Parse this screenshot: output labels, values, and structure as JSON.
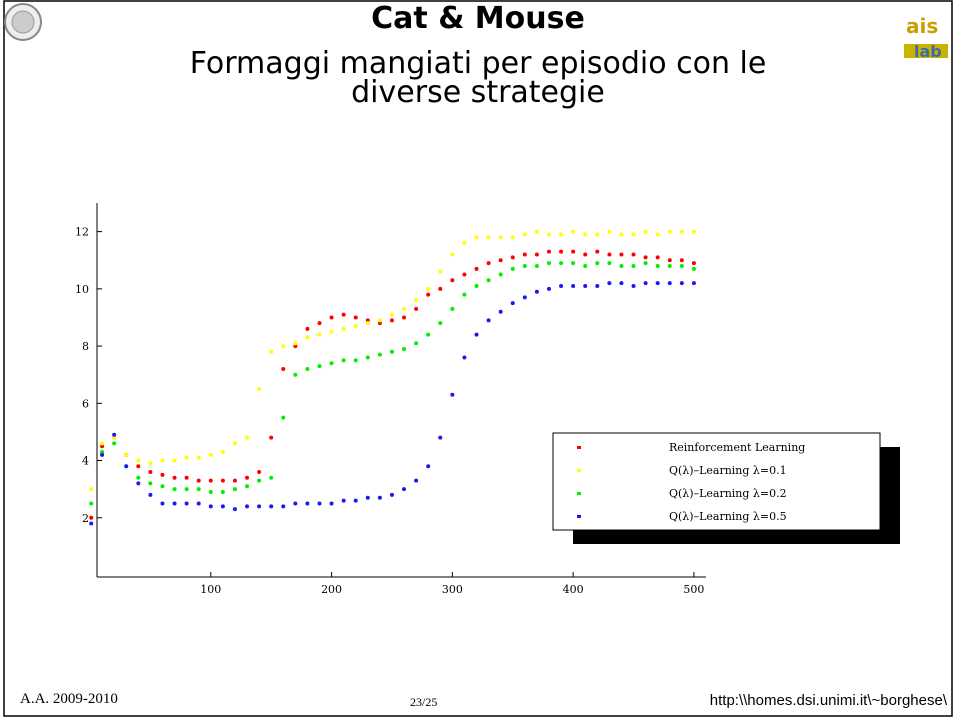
{
  "slide": {
    "title": "Cat & Mouse",
    "subtitle_lines": [
      "Formaggi mangiati per episodio con le",
      "diverse strategie"
    ],
    "footer_left": "A.A. 2009-2010",
    "footer_center": "23/25",
    "footer_right": "http:\\\\homes.dsi.unimi.it\\~borghese\\"
  },
  "chart_data": {
    "type": "scatter",
    "legend": "right",
    "x": [
      1,
      10,
      20,
      30,
      40,
      50,
      60,
      70,
      80,
      90,
      100,
      110,
      120,
      130,
      140,
      150,
      160,
      170,
      180,
      190,
      200,
      210,
      220,
      230,
      240,
      250,
      260,
      270,
      280,
      290,
      300,
      310,
      320,
      330,
      340,
      350,
      360,
      370,
      380,
      390,
      400,
      410,
      420,
      430,
      440,
      450,
      460,
      470,
      480,
      490,
      500
    ],
    "series": [
      {
        "name": "Reinforcement Learning",
        "color": "#ff0000",
        "values": [
          2,
          4.5,
          4.8,
          4.2,
          3.8,
          3.6,
          3.5,
          3.4,
          3.4,
          3.3,
          3.3,
          3.3,
          3.3,
          3.4,
          3.6,
          4.8,
          7.2,
          8.0,
          8.6,
          8.8,
          9.0,
          9.1,
          9.0,
          8.9,
          8.8,
          8.9,
          9.0,
          9.3,
          9.8,
          10.0,
          10.3,
          10.5,
          10.7,
          10.9,
          11.0,
          11.1,
          11.2,
          11.2,
          11.3,
          11.3,
          11.3,
          11.2,
          11.3,
          11.2,
          11.2,
          11.2,
          11.1,
          11.1,
          11.0,
          11.0,
          10.9
        ]
      },
      {
        "name": "Q(λ)–Learning λ=0.1",
        "color": "#ffff00",
        "values": [
          3,
          4.6,
          4.8,
          4.2,
          4.0,
          3.9,
          4.0,
          4.0,
          4.1,
          4.1,
          4.2,
          4.3,
          4.6,
          4.8,
          6.5,
          7.8,
          8.0,
          8.1,
          8.3,
          8.4,
          8.5,
          8.6,
          8.7,
          8.8,
          8.9,
          9.1,
          9.3,
          9.6,
          10.0,
          10.6,
          11.2,
          11.6,
          11.8,
          11.8,
          11.8,
          11.8,
          11.9,
          12.0,
          11.9,
          11.9,
          12.0,
          11.9,
          11.9,
          12.0,
          11.9,
          11.9,
          12.0,
          11.9,
          12.0,
          12.0,
          12.0
        ]
      },
      {
        "name": "Q(λ)–Learning λ=0.2",
        "color": "#00ee00",
        "values": [
          2.5,
          4.3,
          4.6,
          3.8,
          3.4,
          3.2,
          3.1,
          3.0,
          3.0,
          3.0,
          2.9,
          2.9,
          3.0,
          3.1,
          3.3,
          3.4,
          5.5,
          7.0,
          7.2,
          7.3,
          7.4,
          7.5,
          7.5,
          7.6,
          7.7,
          7.8,
          7.9,
          8.1,
          8.4,
          8.8,
          9.3,
          9.8,
          10.1,
          10.3,
          10.5,
          10.7,
          10.8,
          10.8,
          10.9,
          10.9,
          10.9,
          10.8,
          10.9,
          10.9,
          10.8,
          10.8,
          10.9,
          10.8,
          10.8,
          10.8,
          10.7
        ]
      },
      {
        "name": "Q(λ)–Learning λ=0.5",
        "color": "#1a1aee",
        "values": [
          1.8,
          4.2,
          4.9,
          3.8,
          3.2,
          2.8,
          2.5,
          2.5,
          2.5,
          2.5,
          2.4,
          2.4,
          2.3,
          2.4,
          2.4,
          2.4,
          2.4,
          2.5,
          2.5,
          2.5,
          2.5,
          2.6,
          2.6,
          2.7,
          2.7,
          2.8,
          3.0,
          3.3,
          3.8,
          4.8,
          6.3,
          7.6,
          8.4,
          8.9,
          9.2,
          9.5,
          9.7,
          9.9,
          10.0,
          10.1,
          10.1,
          10.1,
          10.1,
          10.2,
          10.2,
          10.1,
          10.2,
          10.2,
          10.2,
          10.2,
          10.2
        ]
      }
    ],
    "xlim": [
      0,
      510
    ],
    "ylim": [
      0,
      13
    ],
    "xticks": [
      100,
      200,
      300,
      400,
      500
    ],
    "yticks": [
      2,
      4,
      6,
      8,
      10,
      12
    ]
  }
}
